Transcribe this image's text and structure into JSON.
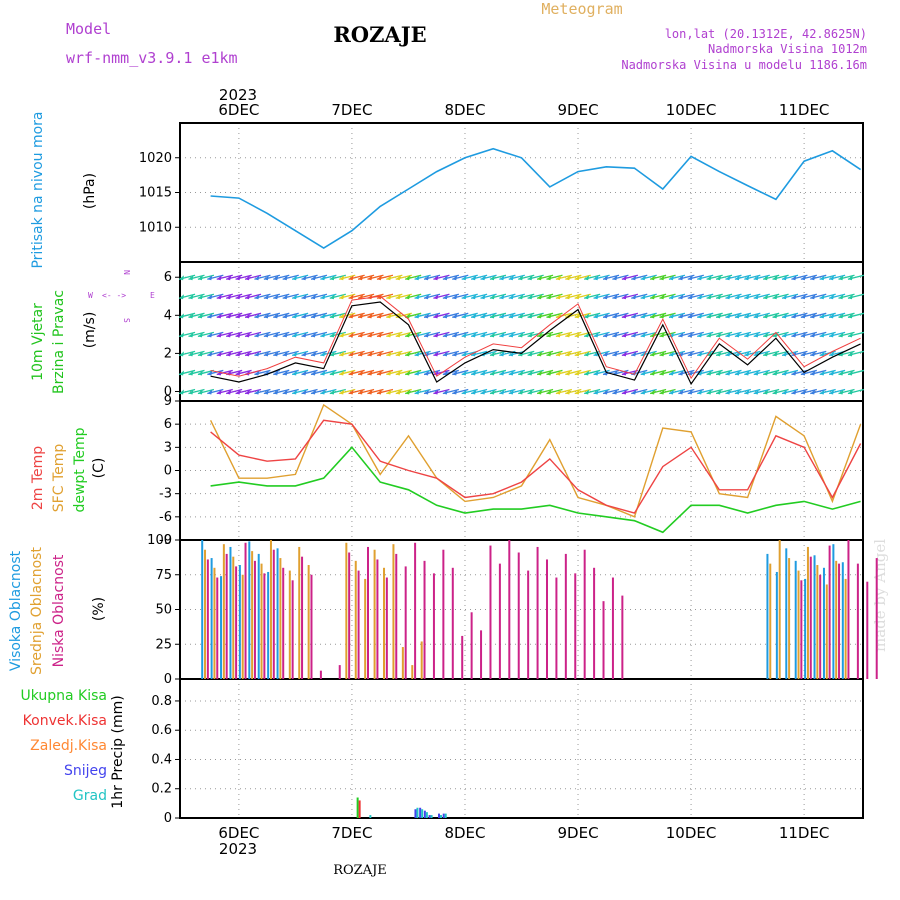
{
  "header": {
    "model_label": "Model",
    "model_name": "wrf-nmm_v3.9.1  e1km",
    "place": "ROZAJE",
    "product": "Meteogram",
    "lonlat": "lon,lat (20.1312E, 42.8625N)",
    "elevation": "Nadmorska Visina 1012m",
    "model_elevation": "Nadmorska Visina u modelu 1186.16m",
    "credit": "made by Angel",
    "footer_place": "ROZAJE"
  },
  "colors": {
    "pressure": "#1e9be0",
    "wind_label": "#22c41e",
    "wind_axis": "#b040d0",
    "t2m": "#ee4444",
    "sfc": "#e0a030",
    "dewpt": "#22cc22",
    "high_cloud": "#1e9be0",
    "mid_cloud": "#e0a030",
    "low_cloud": "#cc2288",
    "precip_total": "#22cc22",
    "precip_conv": "#ee3333",
    "precip_strat": "#ff8833",
    "snow": "#4444ee",
    "grad": "#22c4c4"
  },
  "chart_data": [
    {
      "type": "line",
      "title": "Pritisak na nivou mora",
      "ylabel": "(hPa)",
      "ylim": [
        1005,
        1025
      ],
      "yticks": [
        1010,
        1015,
        1020
      ],
      "x_dates": [
        "6DEC",
        "7DEC",
        "8DEC",
        "9DEC",
        "10DEC",
        "11DEC"
      ],
      "year": "2023",
      "x_hours": [
        0,
        6,
        12,
        18,
        24,
        30,
        36,
        42,
        48,
        54,
        60,
        66,
        72,
        78,
        84,
        90,
        96,
        102,
        108,
        114,
        120,
        126,
        132,
        138
      ],
      "series": [
        {
          "values": [
            1014.5,
            1014.2,
            1012.0,
            1009.5,
            1007.0,
            1009.5,
            1013.0,
            1015.5,
            1018.0,
            1020.0,
            1021.3,
            1020.0,
            1015.8,
            1018.0,
            1018.7,
            1018.5,
            1015.5,
            1020.2,
            1018.0,
            1016.0,
            1014.0,
            1019.5,
            1021.0,
            1018.3
          ]
        }
      ]
    },
    {
      "type": "line",
      "title": "10m Vjetar Brzina i Pravac",
      "ylabel": "(m/s)",
      "direction_legend": "W <- -> E, N, S",
      "ylim": [
        -0.5,
        6.8
      ],
      "yticks": [
        0,
        2,
        4,
        6
      ],
      "x_hours": [
        0,
        6,
        12,
        18,
        24,
        30,
        36,
        42,
        48,
        54,
        60,
        66,
        72,
        78,
        84,
        90,
        96,
        102,
        108,
        114,
        120,
        126,
        132,
        138
      ],
      "series": [
        {
          "values": [
            0.8,
            0.5,
            0.9,
            1.5,
            1.2,
            4.5,
            4.7,
            3.5,
            0.5,
            1.5,
            2.2,
            2.0,
            3.2,
            4.3,
            1.0,
            0.6,
            3.5,
            0.4,
            2.5,
            1.4,
            2.8,
            1.0,
            1.8,
            2.5
          ]
        }
      ],
      "barbs": "arrows colored by wind speed"
    },
    {
      "type": "line",
      "ylabel": "(C)",
      "ylim": [
        -9,
        9
      ],
      "yticks": [
        -9,
        -6,
        -3,
        0,
        3,
        6,
        9
      ],
      "x_hours": [
        0,
        6,
        12,
        18,
        24,
        30,
        36,
        42,
        48,
        54,
        60,
        66,
        72,
        78,
        84,
        90,
        96,
        102,
        108,
        114,
        120,
        126,
        132,
        138
      ],
      "series": [
        {
          "name": "2m Temp",
          "values": [
            5.0,
            2.0,
            1.2,
            1.5,
            6.5,
            6.0,
            1.2,
            0.0,
            -1.0,
            -3.5,
            -3.0,
            -1.5,
            1.5,
            -2.5,
            -4.5,
            -5.5,
            0.5,
            3.0,
            -2.5,
            -2.5,
            4.5,
            3.0,
            -3.5,
            3.5
          ]
        },
        {
          "name": "SFC Temp",
          "values": [
            6.5,
            -1.0,
            -1.0,
            -0.5,
            8.5,
            6.0,
            -0.5,
            4.5,
            -1.0,
            -4.0,
            -3.5,
            -2.0,
            4.0,
            -3.5,
            -4.5,
            -6.0,
            5.5,
            5.0,
            -3.0,
            -3.5,
            7.0,
            4.5,
            -4.0,
            6.0
          ]
        },
        {
          "name": "dewpt Temp",
          "values": [
            -2.0,
            -1.5,
            -2.0,
            -2.0,
            -1.0,
            3.0,
            -1.5,
            -2.5,
            -4.5,
            -5.5,
            -5.0,
            -5.0,
            -4.5,
            -5.5,
            -6.0,
            -6.5,
            -8.0,
            -4.5,
            -4.5,
            -5.5,
            -4.5,
            -4.0,
            -5.0,
            -4.0
          ]
        }
      ]
    },
    {
      "type": "bar",
      "ylabel": "(%)",
      "ylim": [
        0,
        100
      ],
      "yticks": [
        0,
        25,
        50,
        75,
        100
      ],
      "series": [
        {
          "name": "Visoka Oblacnost",
          "values": [
            100,
            100,
            100,
            0,
            0,
            0,
            0,
            0,
            0,
            0,
            0,
            0,
            0,
            0,
            0,
            0,
            0,
            0,
            0,
            0,
            100,
            100,
            100,
            0
          ]
        },
        {
          "name": "Srednja Oblacnost",
          "values": [
            100,
            100,
            100,
            100,
            0,
            100,
            100,
            35,
            0,
            0,
            0,
            0,
            0,
            0,
            0,
            0,
            0,
            0,
            0,
            0,
            100,
            100,
            95,
            0
          ]
        },
        {
          "name": "Niska Oblacnost",
          "values": [
            100,
            100,
            100,
            100,
            10,
            100,
            100,
            100,
            100,
            60,
            100,
            100,
            100,
            95,
            80,
            0,
            0,
            0,
            0,
            0,
            0,
            100,
            100,
            92
          ]
        }
      ]
    },
    {
      "type": "bar",
      "ylabel": "1hr Precip (mm)",
      "ylim": [
        0,
        0.95
      ],
      "yticks": [
        0,
        0.2,
        0.4,
        0.6,
        0.8
      ],
      "legend": [
        "Ukupna Kisa",
        "Konvek.Kisa",
        "Zaledj.Kisa",
        "Snijeg",
        "Grad"
      ],
      "bars": [
        {
          "hour": 31,
          "values": [
            0.14,
            0.12,
            0.0,
            0.0,
            0.0
          ]
        },
        {
          "hour": 32,
          "values": [
            0.0,
            0.0,
            0.0,
            0.0,
            0.02
          ]
        },
        {
          "hour": 42,
          "values": [
            0.0,
            0.0,
            0.0,
            0.06,
            0.07
          ]
        },
        {
          "hour": 43,
          "values": [
            0.0,
            0.0,
            0.0,
            0.07,
            0.06
          ]
        },
        {
          "hour": 44,
          "values": [
            0.0,
            0.0,
            0.0,
            0.05,
            0.04
          ]
        },
        {
          "hour": 45,
          "values": [
            0.0,
            0.0,
            0.0,
            0.02,
            0.02
          ]
        },
        {
          "hour": 47,
          "values": [
            0.0,
            0.0,
            0.0,
            0.03,
            0.02
          ]
        },
        {
          "hour": 48,
          "values": [
            0.0,
            0.0,
            0.0,
            0.03,
            0.03
          ]
        }
      ]
    }
  ]
}
